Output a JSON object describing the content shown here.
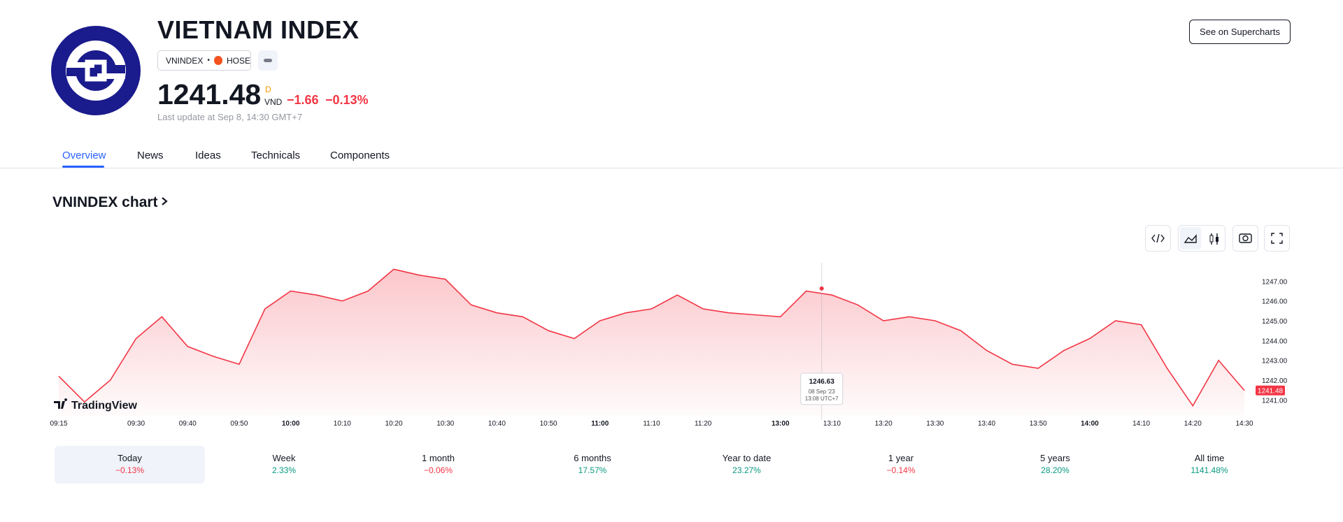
{
  "header": {
    "title": "VIETNAM INDEX",
    "ticker": "VNINDEX",
    "exchange": "HOSE",
    "price_flag": "D",
    "currency": "VND",
    "change": "−1.66",
    "change_percent": "−0.13%",
    "last_update": "Last update at Sep 8, 14:30 GMT+7",
    "button": "See on Supercharts"
  },
  "tabs": [
    "Overview",
    "News",
    "Ideas",
    "Technicals",
    "Components"
  ],
  "chart_heading": "VNINDEX chart",
  "chart_data": {
    "type": "line",
    "color": "#f23645",
    "categories": [
      "09:15",
      null,
      null,
      "09:30",
      null,
      "09:40",
      null,
      "09:50",
      null,
      "10:00",
      null,
      "10:10",
      null,
      "10:20",
      null,
      "10:30",
      null,
      "10:40",
      null,
      "10:50",
      null,
      "11:00",
      null,
      "11:10",
      null,
      "11:20",
      null,
      null,
      "13:00",
      null,
      "13:10",
      null,
      "13:20",
      null,
      "13:30",
      null,
      "13:40",
      null,
      "13:50",
      null,
      "14:00",
      null,
      "14:10",
      null,
      "14:20",
      null,
      "14:30"
    ],
    "values": [
      1242.2,
      1240.9,
      1242.0,
      1244.1,
      1245.2,
      1243.7,
      1243.2,
      1242.8,
      1245.6,
      1246.5,
      1246.3,
      1246.0,
      1246.5,
      1247.6,
      1247.3,
      1247.1,
      1245.8,
      1245.4,
      1245.2,
      1244.5,
      1244.1,
      1245.0,
      1245.4,
      1245.6,
      1246.3,
      1245.6,
      1245.4,
      1245.3,
      1245.2,
      1246.5,
      1246.3,
      1245.8,
      1245.0,
      1245.2,
      1245.0,
      1244.5,
      1243.5,
      1242.8,
      1242.6,
      1243.5,
      1244.1,
      1245.0,
      1244.8,
      1242.6,
      1240.7,
      1243.0,
      1241.48
    ],
    "ylim": [
      1240.2,
      1248
    ],
    "yticks": [
      {
        "value": 1241,
        "label": "1241.00"
      },
      {
        "value": 1242,
        "label": "1242.00"
      },
      {
        "value": 1243,
        "label": "1243.00"
      },
      {
        "value": 1244,
        "label": "1244.00"
      },
      {
        "value": 1245,
        "label": "1245.00"
      },
      {
        "value": 1246,
        "label": "1246.00"
      },
      {
        "value": 1247,
        "label": "1247.00"
      }
    ],
    "grid": false,
    "last_value": 1241.48,
    "tooltip": {
      "value": 1246.63,
      "date": "08 Sep '23",
      "time": "13:08 UTC+7"
    },
    "watermark": "TradingView"
  },
  "periods": [
    {
      "label": "Today",
      "change": "−0.13%"
    },
    {
      "label": "Week",
      "change": "2.33%"
    },
    {
      "label": "1 month",
      "change": "−0.06%"
    },
    {
      "label": "6 months",
      "change": "17.57%"
    },
    {
      "label": "Year to date",
      "change": "23.27%"
    },
    {
      "label": "1 year",
      "change": "−0.14%"
    },
    {
      "label": "5 years",
      "change": "28.20%"
    },
    {
      "label": "All time",
      "change": "1141.48%"
    }
  ]
}
